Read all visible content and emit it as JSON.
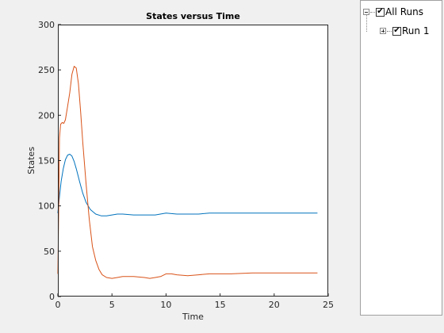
{
  "chart_data": {
    "type": "line",
    "title": "States versus Time",
    "xlabel": "Time",
    "ylabel": "States",
    "xlim": [
      0,
      25
    ],
    "ylim": [
      0,
      300
    ],
    "x_ticks": [
      "0",
      "5",
      "10",
      "15",
      "20",
      "25"
    ],
    "y_ticks": [
      "0",
      "50",
      "100",
      "150",
      "200",
      "250",
      "300"
    ],
    "grid": false,
    "series": [
      {
        "color": "#0072bd",
        "x": [
          0,
          0.15,
          0.3,
          0.5,
          0.7,
          0.9,
          1.1,
          1.3,
          1.5,
          1.7,
          2.0,
          2.3,
          2.6,
          3.0,
          3.5,
          4.0,
          4.5,
          5.0,
          5.5,
          6.0,
          7.0,
          8.0,
          9.0,
          10.0,
          11.0,
          12.0,
          13.0,
          14.0,
          16.0,
          18.0,
          20.0,
          22.0,
          24.0
        ],
        "y": [
          92,
          110,
          127,
          141,
          151,
          156,
          157,
          155,
          149,
          141,
          127,
          114,
          104,
          96,
          91,
          89,
          89,
          90,
          91,
          91,
          90,
          90,
          90,
          92,
          91,
          91,
          91,
          92,
          92,
          92,
          92,
          92,
          92
        ]
      },
      {
        "color": "#d95319",
        "x": [
          0,
          0.08,
          0.15,
          0.25,
          0.4,
          0.55,
          0.7,
          0.9,
          1.1,
          1.3,
          1.5,
          1.7,
          1.9,
          2.1,
          2.3,
          2.6,
          2.9,
          3.2,
          3.5,
          3.8,
          4.1,
          4.5,
          5.0,
          5.5,
          6.0,
          7.0,
          8.0,
          8.5,
          9.0,
          9.5,
          10.0,
          10.5,
          11.0,
          12.0,
          13.0,
          14.0,
          16.0,
          18.0,
          20.0,
          22.0,
          24.0
        ],
        "y": [
          25,
          100,
          175,
          190,
          192,
          191,
          195,
          210,
          225,
          245,
          254,
          252,
          235,
          205,
          170,
          125,
          85,
          55,
          40,
          30,
          24,
          21,
          20,
          21,
          22,
          22,
          21,
          20,
          21,
          22,
          25,
          25,
          24,
          23,
          24,
          25,
          25,
          26,
          26,
          26,
          26
        ]
      }
    ]
  },
  "tree": {
    "root_label": "All Runs",
    "child_label": "Run 1",
    "check_glyph": "✔"
  }
}
